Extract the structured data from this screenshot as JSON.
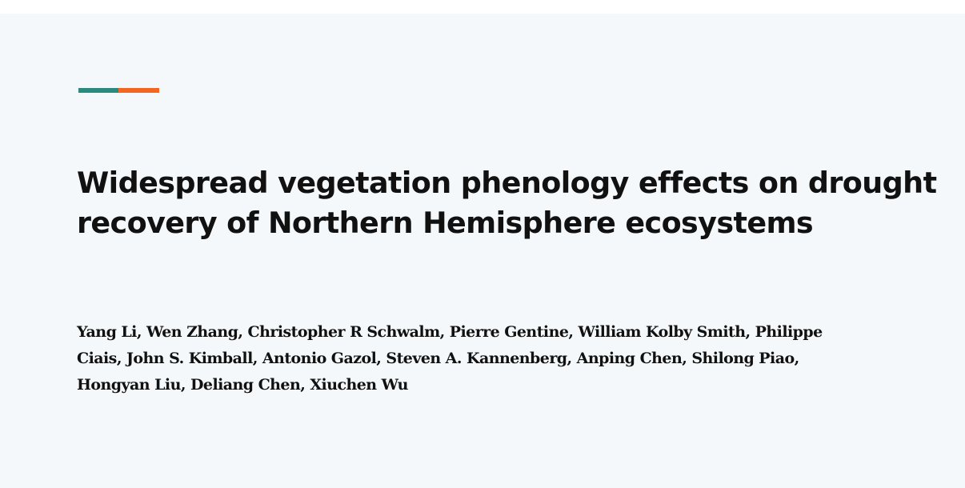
{
  "slide": {
    "accent_colors": {
      "left": "#2a8a80",
      "right": "#f26522"
    },
    "background": "#f5f8fa",
    "title_lines": [
      "Widespread vegetation phenology effects on drought",
      "recovery of Northern Hemisphere ecosystems"
    ],
    "author_lines": [
      "Yang Li, Wen Zhang, Christopher R Schwalm, Pierre Gentine, William Kolby Smith, Philippe",
      "Ciais, John S. Kimball, Antonio Gazol, Steven A. Kannenberg, Anping Chen, Shilong Piao,",
      "Hongyan Liu, Deliang Chen, Xiuchen Wu"
    ]
  }
}
